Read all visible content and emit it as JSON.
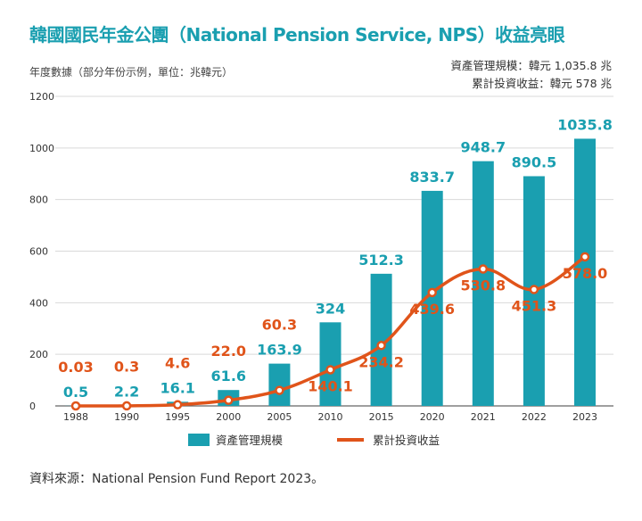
{
  "header": {
    "title": "韓國國民年金公團（National Pension Service, NPS）收益亮眼",
    "subtitle": "年度數據（部分年份示例，單位：兆韓元）"
  },
  "summary": {
    "assets": "資產管理規模：韓元 1,035.8 兆",
    "returns": "累計投資收益：韓元 578 兆"
  },
  "chart_data": {
    "type": "bar",
    "categories": [
      "1988",
      "1990",
      "1995",
      "2000",
      "2005",
      "2010",
      "2015",
      "2020",
      "2021",
      "2022",
      "2023"
    ],
    "ylim": [
      0,
      1200
    ],
    "yticks": [
      0,
      200,
      400,
      600,
      800,
      1000,
      1200
    ],
    "grid": true,
    "series": [
      {
        "name": "資產管理規模",
        "type": "bar",
        "color": "#1a9fb0",
        "values": [
          0.5,
          2.2,
          16.1,
          61.6,
          163.9,
          324,
          512.3,
          833.7,
          948.7,
          890.5,
          1035.8
        ],
        "labels": [
          "0.5",
          "2.2",
          "16.1",
          "61.6",
          "163.9",
          "324",
          "512.3",
          "833.7",
          "948.7",
          "890.5",
          "1035.8"
        ]
      },
      {
        "name": "累計投資收益",
        "type": "line",
        "color": "#e0541a",
        "values": [
          0.03,
          0.3,
          4.6,
          22.0,
          60.3,
          140.1,
          234.2,
          439.6,
          530.8,
          451.3,
          578.0
        ],
        "labels": [
          "0.03",
          "0.3",
          "4.6",
          "22.0",
          "60.3",
          "140.1",
          "234.2",
          "439.6",
          "530.8",
          "451.3",
          "578.0"
        ]
      }
    ],
    "legend_position": "bottom"
  },
  "footer": {
    "source": "資料來源：National Pension Fund Report 2023。"
  }
}
